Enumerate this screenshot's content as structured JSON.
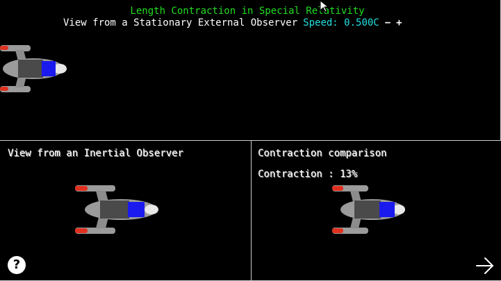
{
  "header": {
    "title": "Length Contraction in Special Relativity",
    "subtitle": "View from a Stationary External Observer",
    "speed_label": "Speed: 0.500C",
    "minus_label": "−",
    "plus_label": "+"
  },
  "panels": {
    "inertial_label": "View from an Inertial Observer",
    "comparison_label": "Contraction comparison",
    "contraction_text": "Contraction : 13%"
  },
  "controls": {
    "help_label": "?",
    "help_icon": "question-circle-icon",
    "next_icon": "arrow-right-icon"
  },
  "colors": {
    "title": "#22dd22",
    "speed": "#22e0e0",
    "ship_body": "#9b9b9b",
    "ship_cockpit": "#4a4a4a",
    "ship_window": "#1a1aee",
    "thruster": "#e03020"
  }
}
